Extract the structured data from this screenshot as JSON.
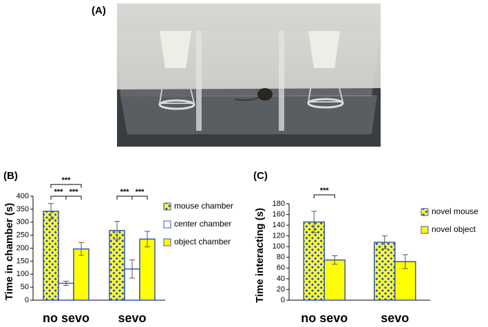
{
  "photo": {
    "label": "(A)"
  },
  "chart_data": [
    {
      "type": "bar",
      "panel_label": "(B)",
      "y_label": "Time in chamber (s)",
      "categories": [
        "no sevo",
        "sevo"
      ],
      "series": [
        {
          "name": "mouse chamber",
          "color": "#ffff33",
          "pattern_color": "#3355bb",
          "values": [
            342,
            268
          ],
          "errors": [
            30,
            35
          ]
        },
        {
          "name": "center chamber",
          "color": "#ffffff",
          "values": [
            65,
            120
          ],
          "errors": [
            8,
            35
          ]
        },
        {
          "name": "object chamber",
          "color": "#ffff00",
          "values": [
            197,
            235
          ],
          "errors": [
            25,
            30
          ]
        }
      ],
      "ylim": [
        0,
        400
      ],
      "yticks": [
        0,
        50,
        100,
        150,
        200,
        250,
        300,
        350,
        400
      ],
      "annotations": [
        "***",
        "***",
        "***",
        "***",
        "***"
      ]
    },
    {
      "type": "bar",
      "panel_label": "(C)",
      "y_label": "Time interacting (s)",
      "categories": [
        "no sevo",
        "sevo"
      ],
      "series": [
        {
          "name": "novel mouse",
          "color": "#ffff33",
          "pattern_color": "#3355bb",
          "values": [
            146,
            108
          ],
          "errors": [
            20,
            12
          ]
        },
        {
          "name": "novel object",
          "color": "#ffff00",
          "values": [
            75,
            72
          ],
          "errors": [
            8,
            13
          ]
        }
      ],
      "ylim": [
        0,
        180
      ],
      "yticks": [
        0,
        20,
        40,
        60,
        80,
        100,
        120,
        140,
        160,
        180
      ],
      "annotations": [
        "***"
      ]
    }
  ]
}
